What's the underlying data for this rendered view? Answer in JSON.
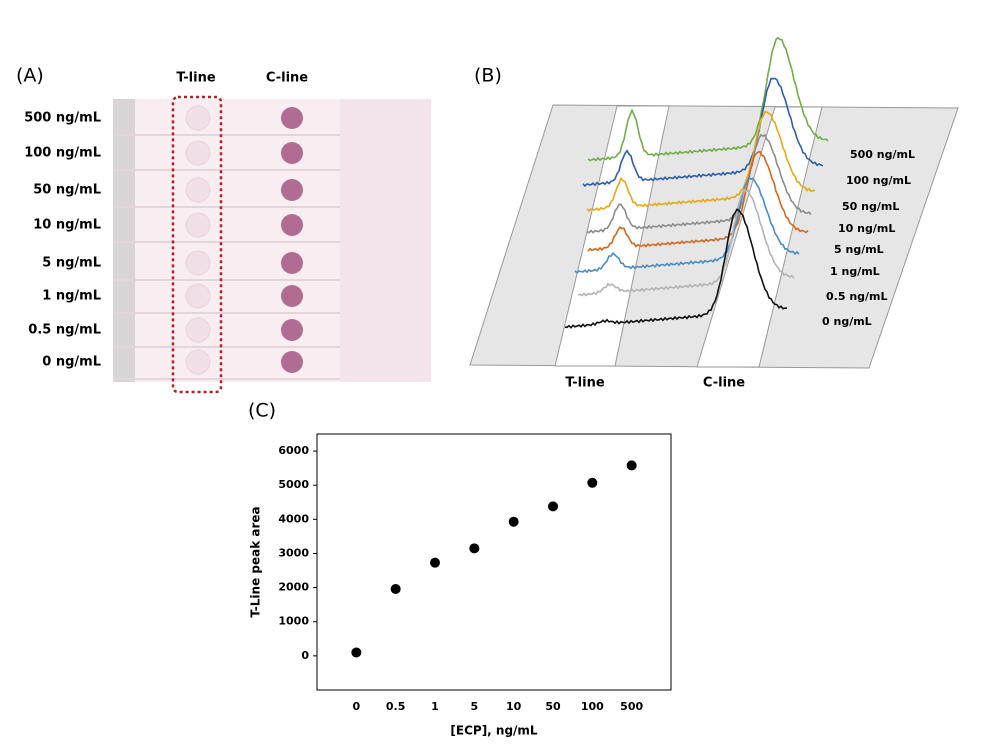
{
  "panel_a": {
    "label": "(A)",
    "column_labels": [
      "T-line",
      "C-line"
    ],
    "row_labels": [
      "500 ng/mL",
      "100 ng/mL",
      "50 ng/mL",
      "10 ng/mL",
      "5 ng/mL",
      "1 ng/mL",
      "0.5 ng/mL",
      "0 ng/mL"
    ]
  },
  "panel_b": {
    "label": "(B)",
    "axis_labels": [
      "T-line",
      "C-line"
    ],
    "series": [
      {
        "name": "500 ng/mL",
        "color": "#70ad47"
      },
      {
        "name": "100 ng/mL",
        "color": "#2e5ea8"
      },
      {
        "name": "50 ng/mL",
        "color": "#e6a817"
      },
      {
        "name": "10 ng/mL",
        "color": "#8c8c8c"
      },
      {
        "name": "5 ng/mL",
        "color": "#d2691e"
      },
      {
        "name": "1 ng/mL",
        "color": "#4a8cc4"
      },
      {
        "name": "0.5 ng/mL",
        "color": "#b4b4b4"
      },
      {
        "name": "0 ng/mL",
        "color": "#111111"
      }
    ]
  },
  "chart_data": {
    "type": "scatter",
    "label": "(C)",
    "x_label": "[ECP], ng/mL",
    "y_label": "T-Line peak area",
    "categories": [
      "0",
      "0.5",
      "1",
      "5",
      "10",
      "50",
      "100",
      "500"
    ],
    "values": [
      100,
      1960,
      2730,
      3150,
      3930,
      4380,
      5070,
      5580
    ],
    "color": "#000000",
    "ylim": [
      -1000,
      6500
    ],
    "yticks": [
      0,
      1000,
      2000,
      3000,
      4000,
      5000,
      6000
    ]
  }
}
